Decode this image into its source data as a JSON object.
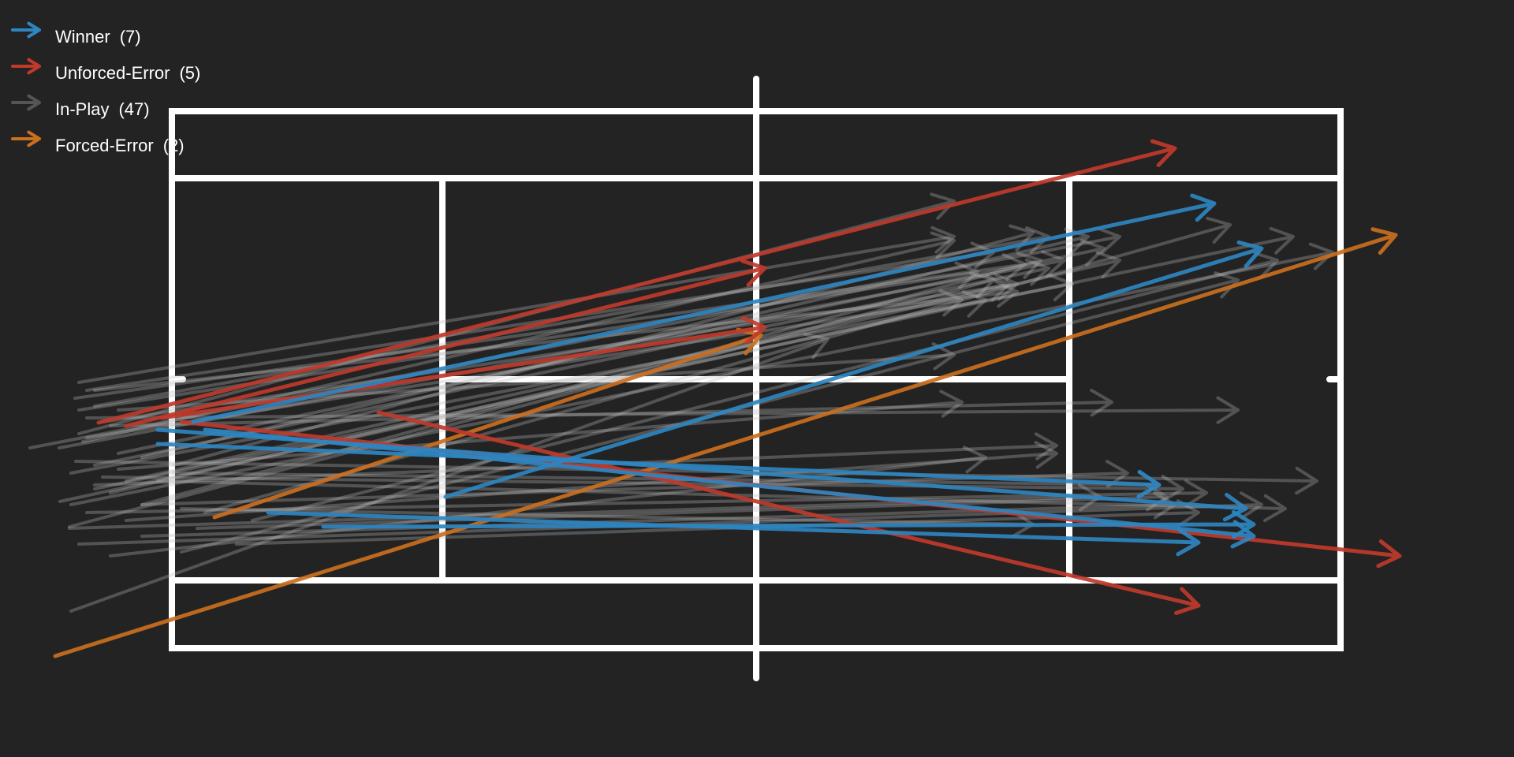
{
  "chart_data": {
    "type": "shot-chart",
    "legend_placement": "top-left",
    "categories": [
      {
        "key": "winner",
        "label": "Winner",
        "count": "(7)",
        "color": "#2e86c1"
      },
      {
        "key": "unforced",
        "label": "Unforced-Error",
        "count": "(5)",
        "color": "#c0392b"
      },
      {
        "key": "inplay",
        "label": "In-Play",
        "count": "(47)",
        "color": "#555555"
      },
      {
        "key": "forced",
        "label": "Forced-Error",
        "count": "(2)",
        "color": "#ca6f1e"
      }
    ]
  }
}
